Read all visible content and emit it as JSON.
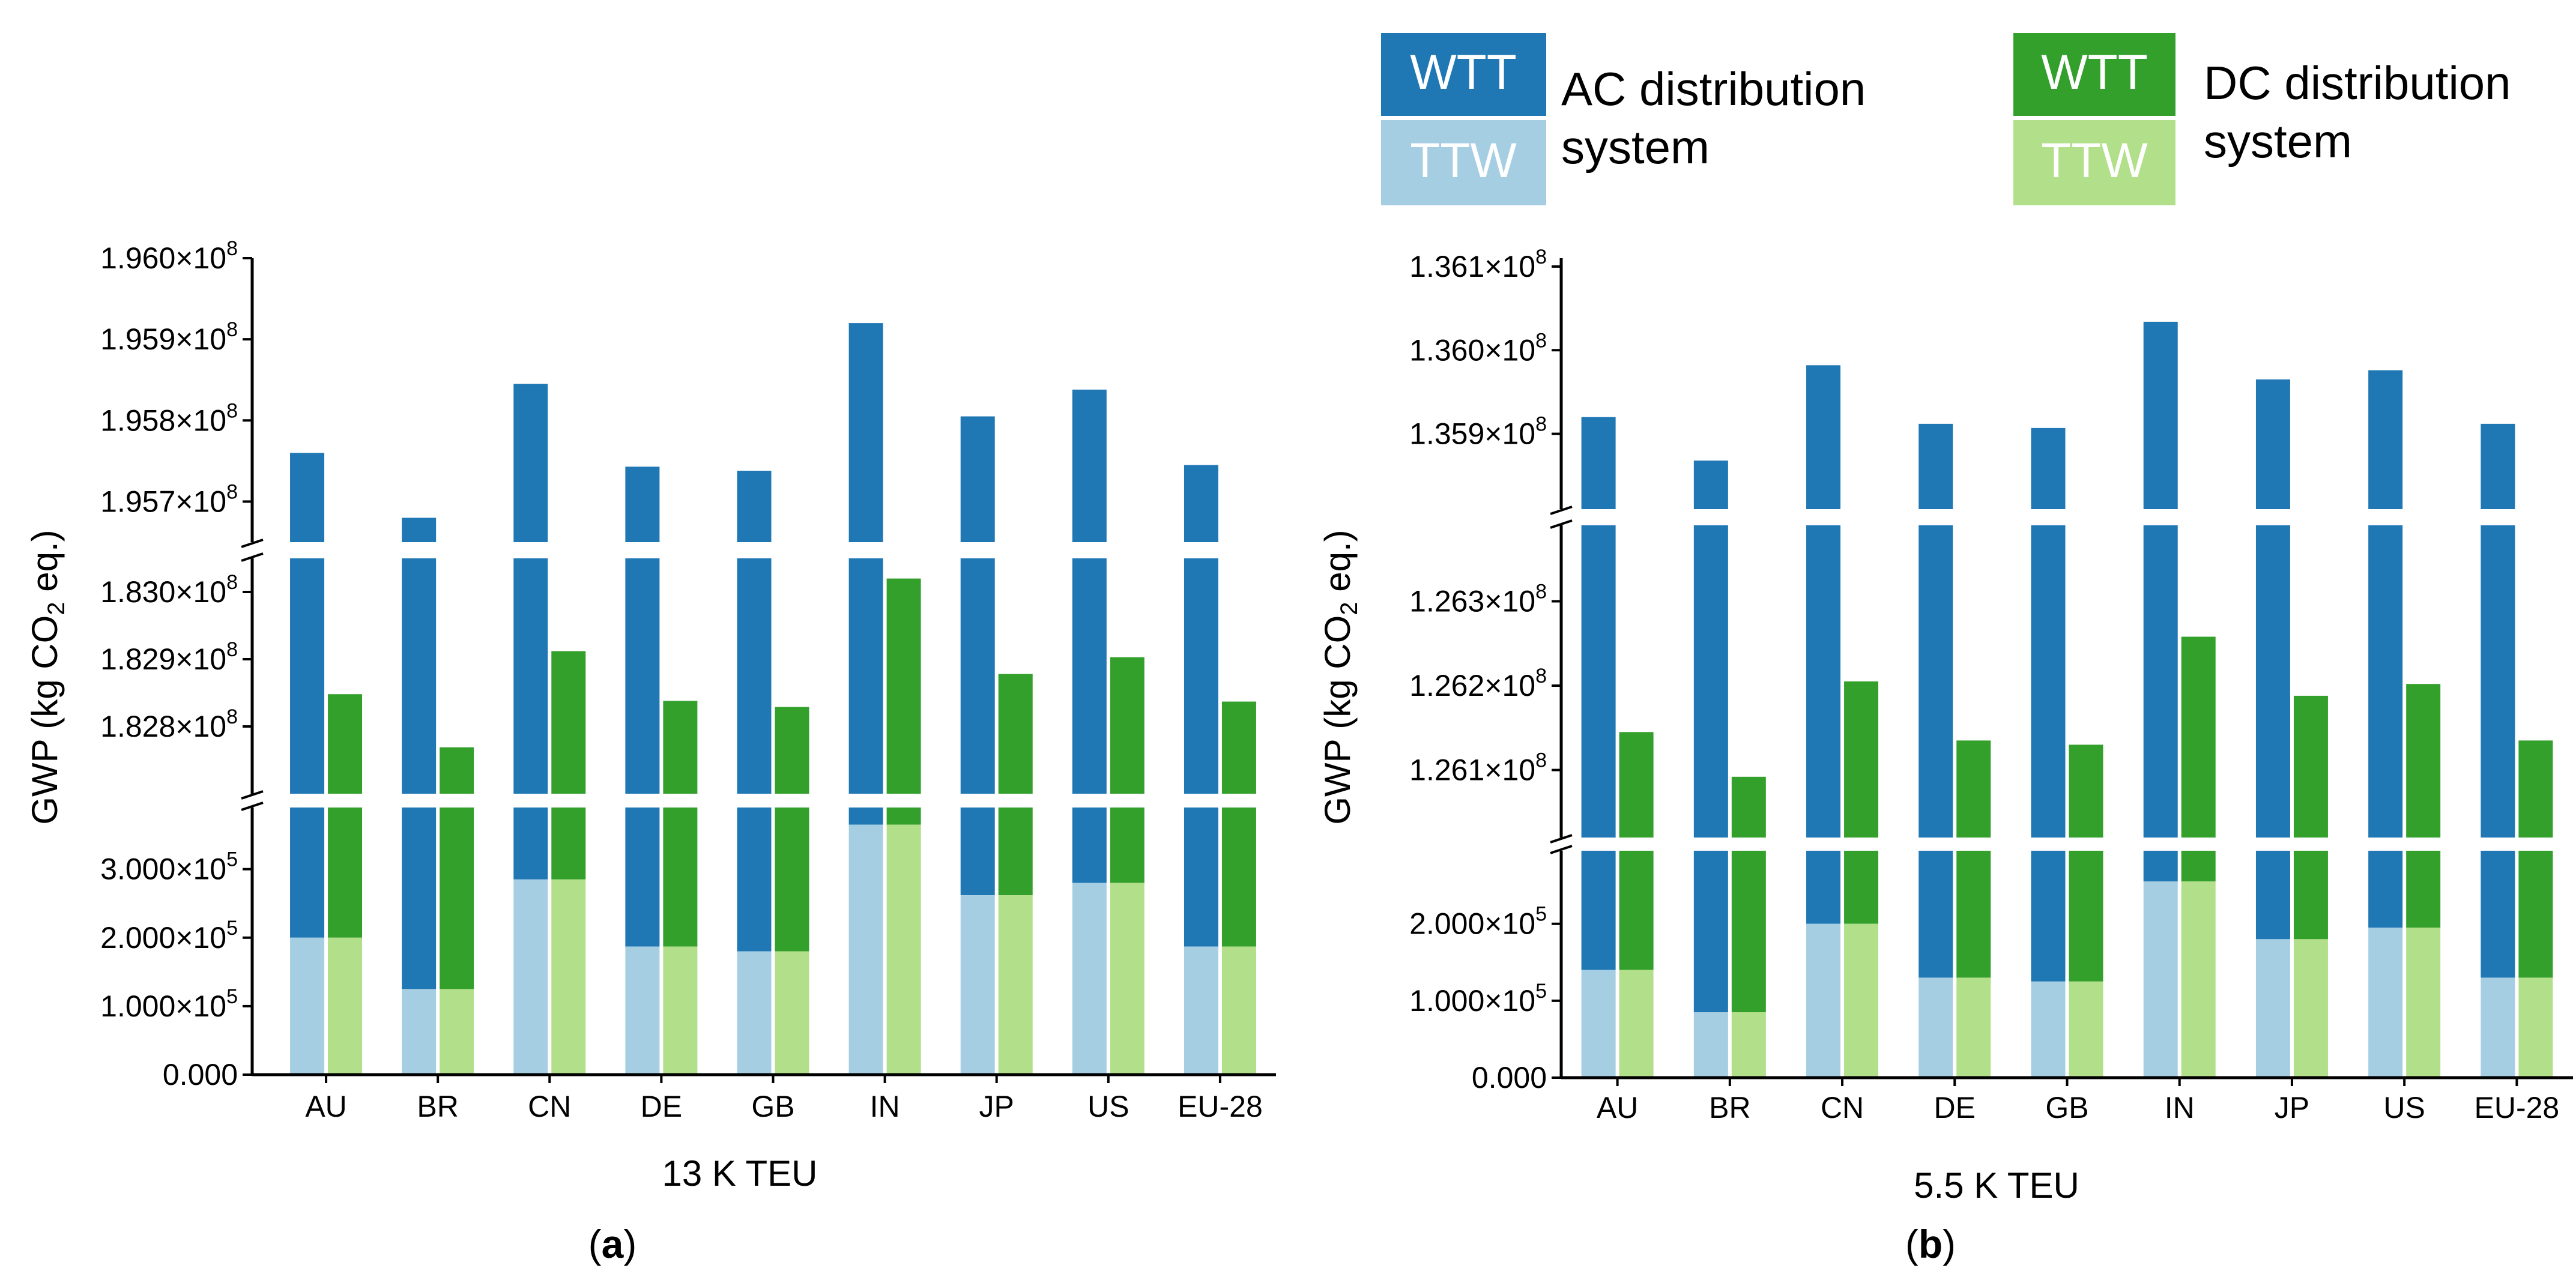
{
  "colors": {
    "ac_wtt": "#1f77b4",
    "ac_ttw": "#a6cee3",
    "dc_wtt": "#33a02c",
    "dc_ttw": "#b2df8a",
    "axis": "#000000"
  },
  "legend": {
    "wtt": "WTT",
    "ttw": "TTW",
    "ac_line1": "AC distribution",
    "ac_line2": "system",
    "dc_line1": "DC distribution",
    "dc_line2": "system"
  },
  "chart_data": [
    {
      "type": "bar",
      "panel": "(a)",
      "panel_letter": "a",
      "title": "13 K TEU",
      "xlabel": "13 K TEU",
      "ylabel": "GWP (kg CO2 eq.)",
      "categories": [
        "AU",
        "BR",
        "CN",
        "DE",
        "GB",
        "IN",
        "JP",
        "US",
        "EU-28"
      ],
      "series": [
        {
          "name": "AC distribution system – total (WTT+TTW)",
          "values": [
            195760000,
            195680000,
            195845000,
            195743000,
            195738000,
            195920000,
            195805000,
            195838000,
            195745000
          ]
        },
        {
          "name": "DC distribution system – total (WTT+TTW)",
          "values": [
            182848000,
            182769000,
            182912000,
            182838000,
            182829000,
            183020000,
            182878000,
            182903000,
            182837000
          ]
        },
        {
          "name": "TTW",
          "values": [
            200000,
            125000,
            285000,
            187000,
            180000,
            365000,
            262000,
            280000,
            187000
          ]
        }
      ],
      "y_axis_segments": [
        {
          "range": [
            195650000.0,
            196000000.0
          ],
          "ticks": [
            "1.957×10^8",
            "1.958×10^8",
            "1.959×10^8",
            "1.960×10^8"
          ]
        },
        {
          "range": [
            182700000.0,
            183050000.0
          ],
          "ticks": [
            "1.828×10^8",
            "1.829×10^8",
            "1.830×10^8"
          ]
        },
        {
          "range": [
            0,
            390000.0
          ],
          "ticks": [
            "0.000",
            "1.000×10^5",
            "2.000×10^5",
            "3.000×10^5"
          ]
        }
      ]
    },
    {
      "type": "bar",
      "panel": "(b)",
      "panel_letter": "b",
      "title": "5.5 K TEU",
      "xlabel": "5.5 K TEU",
      "ylabel": "GWP (kg CO2 eq.)",
      "categories": [
        "AU",
        "BR",
        "CN",
        "DE",
        "GB",
        "IN",
        "JP",
        "US",
        "EU-28"
      ],
      "series": [
        {
          "name": "AC distribution system – total (WTT+TTW)",
          "values": [
            135920000,
            135868000,
            135982000,
            135912000,
            135907000,
            136034000,
            135965000,
            135976000,
            135912000
          ]
        },
        {
          "name": "DC distribution system – total (WTT+TTW)",
          "values": [
            126145000,
            126092000,
            126205000,
            126135000,
            126130000,
            126258000,
            126188000,
            126202000,
            126135000
          ]
        },
        {
          "name": "TTW",
          "values": [
            140000,
            85000,
            200000,
            130000,
            125000,
            255000,
            180000,
            195000,
            130000
          ]
        }
      ],
      "y_axis_segments": [
        {
          "range": [
            135810000.0,
            136110000.0
          ],
          "ticks": [
            "1.359×10^8",
            "1.360×10^8",
            "1.361×10^8"
          ]
        },
        {
          "range": [
            126020000.0,
            126390000.0
          ],
          "ticks": [
            "1.261×10^8",
            "1.262×10^8",
            "1.263×10^8"
          ]
        },
        {
          "range": [
            0,
            295000.0
          ],
          "ticks": [
            "0.000",
            "1.000×10^5",
            "2.000×10^5"
          ]
        }
      ]
    }
  ]
}
